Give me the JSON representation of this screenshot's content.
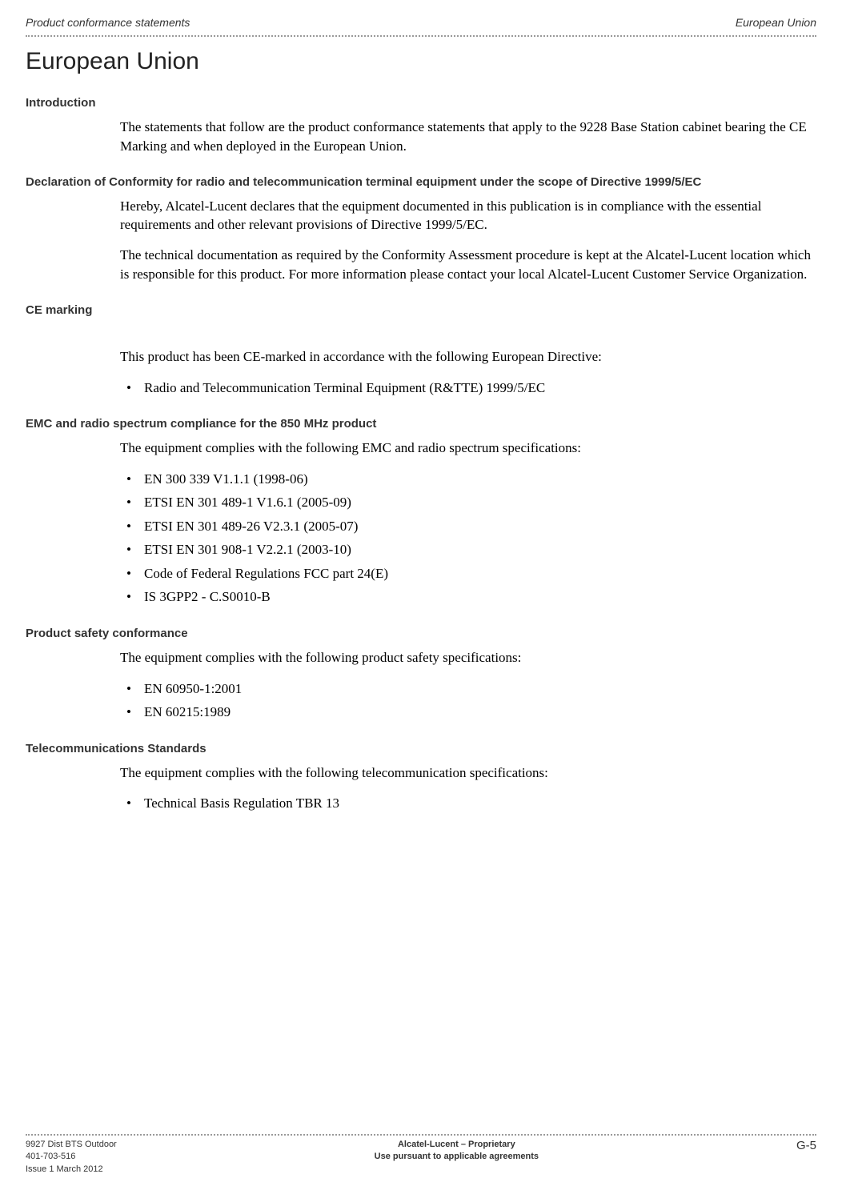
{
  "header": {
    "left": "Product conformance statements",
    "right": "European Union"
  },
  "title": "European Union",
  "sections": {
    "intro": {
      "heading": "Introduction",
      "p1": "The statements that follow are the product conformance statements that apply to the 9228 Base Station cabinet bearing the CE Marking and when deployed in the European Union."
    },
    "declaration": {
      "heading": "Declaration of Conformity for radio and telecommunication terminal equipment under the scope of Directive 1999/5/EC",
      "p1": "Hereby, Alcatel-Lucent declares that the equipment documented in this publication is in compliance with the essential requirements and other relevant provisions of Directive 1999/5/EC.",
      "p2": "The technical documentation as required by the Conformity Assessment procedure is kept at the Alcatel-Lucent location which is responsible for this product. For more information please contact your local Alcatel-Lucent Customer Service Organization."
    },
    "ce": {
      "heading": "CE marking",
      "p1": "This product has been CE-marked in accordance with the following European Directive:",
      "items": {
        "0": "Radio and Telecommunication Terminal Equipment (R&TTE) 1999/5/EC"
      }
    },
    "emc": {
      "heading": "EMC and radio spectrum compliance for the 850 MHz product",
      "p1": "The equipment complies with the following EMC and radio spectrum specifications:",
      "items": {
        "0": "EN 300 339 V1.1.1 (1998-06)",
        "1": "ETSI EN 301 489-1 V1.6.1 (2005-09)",
        "2": "ETSI EN 301 489-26 V2.3.1 (2005-07)",
        "3": "ETSI EN 301 908-1 V2.2.1 (2003-10)",
        "4": "Code of Federal Regulations FCC part 24(E)",
        "5": "IS 3GPP2 - C.S0010-B"
      }
    },
    "safety": {
      "heading": "Product safety conformance",
      "p1": "The equipment complies with the following product safety specifications:",
      "items": {
        "0": "EN 60950-1:2001",
        "1": "EN 60215:1989"
      }
    },
    "telecom": {
      "heading": "Telecommunications Standards",
      "p1": "The equipment complies with the following telecommunication specifications:",
      "items": {
        "0": "Technical Basis Regulation TBR 13"
      }
    }
  },
  "footer": {
    "left": {
      "l1": "9927 Dist BTS Outdoor",
      "l2": "401-703-516",
      "l3": "Issue 1   March 2012"
    },
    "center": {
      "l1": "Alcatel-Lucent – Proprietary",
      "l2": "Use pursuant to applicable agreements"
    },
    "right": "G-5"
  }
}
